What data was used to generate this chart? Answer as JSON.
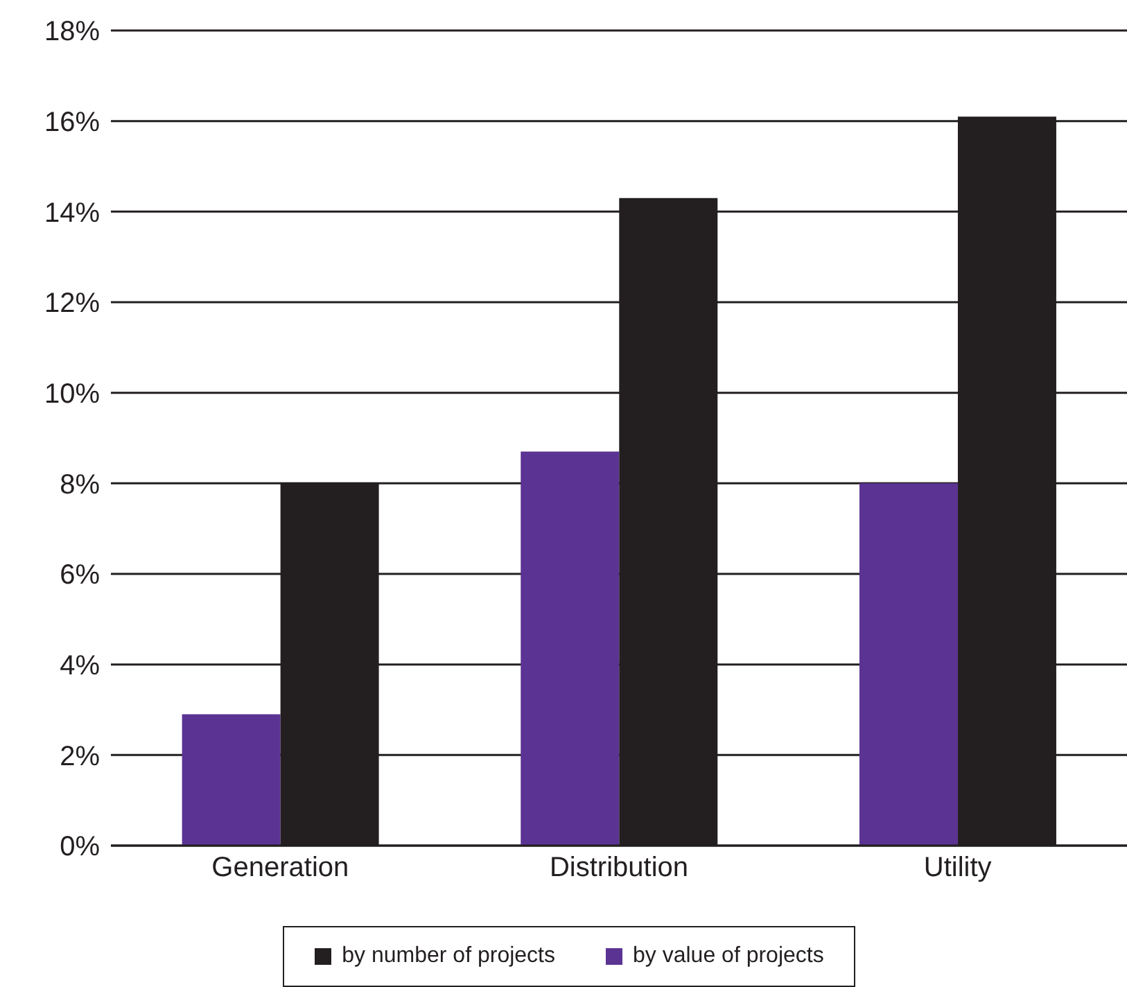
{
  "chart_data": {
    "type": "bar",
    "categories": [
      "Generation",
      "Distribution",
      "Utility"
    ],
    "series": [
      {
        "name": "by value of projects",
        "color": "#5b3393",
        "values": [
          2.9,
          8.7,
          8.0
        ]
      },
      {
        "name": "by number of projects",
        "color": "#231f20",
        "values": [
          8.0,
          14.3,
          16.1
        ]
      }
    ],
    "ylim": [
      0,
      18
    ],
    "yticks": [
      {
        "value": 0,
        "label": "0%"
      },
      {
        "value": 2,
        "label": "2%"
      },
      {
        "value": 4,
        "label": "4%"
      },
      {
        "value": 6,
        "label": "6%"
      },
      {
        "value": 8,
        "label": "8%"
      },
      {
        "value": 10,
        "label": "10%"
      },
      {
        "value": 12,
        "label": "12%"
      },
      {
        "value": 14,
        "label": "14%"
      },
      {
        "value": 16,
        "label": "16%"
      },
      {
        "value": 18,
        "label": "18%"
      }
    ],
    "grid": "y",
    "legend": "bottom"
  }
}
